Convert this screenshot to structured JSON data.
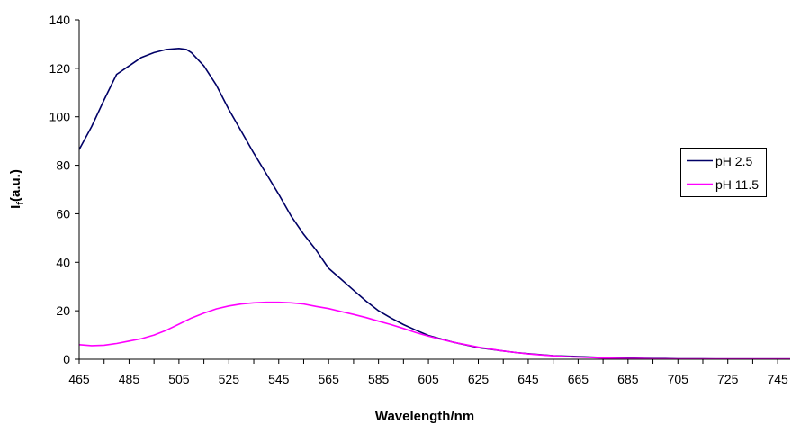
{
  "chart_data": {
    "type": "line",
    "xlabel": "Wavelength/nm",
    "ylabel": "I",
    "ylabel_subscript": "f",
    "ylabel_suffix": "(a.u.)",
    "xlim": [
      465,
      750
    ],
    "ylim": [
      0,
      140
    ],
    "x_ticks": [
      "465",
      "485",
      "505",
      "525",
      "545",
      "565",
      "585",
      "605",
      "625",
      "645",
      "665",
      "685",
      "705",
      "725",
      "745"
    ],
    "y_ticks": [
      "0",
      "20",
      "40",
      "60",
      "80",
      "100",
      "120",
      "140"
    ],
    "grid": false,
    "legend_position": "right",
    "series": [
      {
        "name": "pH 2.5",
        "color": "#000066",
        "x": [
          465,
          470,
          475,
          480,
          485,
          490,
          495,
          500,
          505,
          508,
          510,
          515,
          520,
          525,
          530,
          535,
          540,
          545,
          550,
          555,
          560,
          565,
          570,
          575,
          580,
          585,
          590,
          595,
          600,
          605,
          610,
          615,
          620,
          625,
          630,
          635,
          640,
          645,
          650,
          655,
          660,
          665,
          670,
          675,
          680,
          685,
          690,
          695,
          700,
          705,
          710,
          715,
          720,
          725,
          730,
          735,
          740,
          745,
          750
        ],
        "values": [
          86.5,
          96,
          107,
          117.5,
          121,
          124.5,
          126.5,
          127.8,
          128.2,
          127.8,
          126.5,
          121,
          113,
          103,
          94,
          85,
          76.5,
          68,
          59,
          51.5,
          45,
          37.5,
          33,
          28.5,
          24,
          20,
          17,
          14.3,
          12,
          9.8,
          8.4,
          7,
          5.9,
          4.8,
          4.1,
          3.4,
          2.8,
          2.3,
          1.9,
          1.5,
          1.3,
          1.1,
          0.9,
          0.7,
          0.6,
          0.5,
          0.4,
          0.3,
          0.3,
          0.2,
          0.2,
          0.2,
          0.1,
          0.1,
          0.1,
          0.1,
          0.1,
          0.1,
          0.1
        ]
      },
      {
        "name": "pH 11.5",
        "color": "#ff00ff",
        "x": [
          465,
          470,
          475,
          480,
          485,
          490,
          495,
          500,
          505,
          510,
          515,
          520,
          525,
          530,
          535,
          540,
          545,
          550,
          555,
          560,
          565,
          570,
          575,
          580,
          585,
          590,
          595,
          600,
          605,
          610,
          615,
          620,
          625,
          630,
          635,
          640,
          645,
          650,
          655,
          660,
          665,
          670,
          675,
          680,
          685,
          690,
          695,
          700,
          705,
          710,
          715,
          720,
          725,
          730,
          735,
          740,
          745,
          750
        ],
        "values": [
          6,
          5.6,
          5.8,
          6.5,
          7.5,
          8.5,
          10,
          12,
          14.5,
          17,
          19,
          20.8,
          22,
          22.8,
          23.3,
          23.5,
          23.5,
          23.3,
          22.8,
          21.8,
          20.9,
          19.7,
          18.5,
          17.2,
          15.7,
          14.3,
          12.7,
          11,
          9.5,
          8.2,
          7,
          6,
          5,
          4.2,
          3.4,
          2.8,
          2.2,
          1.8,
          1.4,
          1.1,
          0.9,
          0.7,
          0.5,
          0.4,
          0.3,
          0.3,
          0.2,
          0.2,
          0.1,
          0.1,
          0.1,
          0.1,
          0.1,
          0.1,
          0.1,
          0.1,
          0.1,
          0.1
        ]
      }
    ]
  }
}
